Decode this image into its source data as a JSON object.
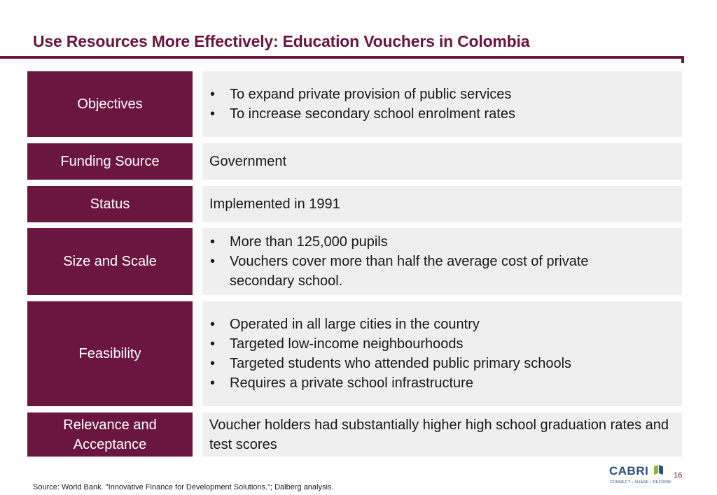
{
  "title": "Use Resources More Effectively: Education Vouchers in Colombia",
  "rows": [
    {
      "label": "Objectives",
      "bullets": [
        "To expand private provision of public services",
        "To increase secondary school enrolment rates"
      ]
    },
    {
      "label": "Funding Source",
      "text": "Government"
    },
    {
      "label": "Status",
      "text": "Implemented in 1991"
    },
    {
      "label": "Size and Scale",
      "bullets": [
        "More than 125,000 pupils",
        "Vouchers cover more than half the average cost of private secondary school."
      ]
    },
    {
      "label": "Feasibility",
      "bullets": [
        "Operated in all large cities in the country",
        "Targeted low-income neighbourhoods",
        "Targeted students who attended public primary schools",
        "Requires a private school infrastructure"
      ]
    },
    {
      "label": "Relevance and Acceptance",
      "text": "Voucher holders had substantially higher high school graduation rates and test scores"
    }
  ],
  "logo": {
    "name": "CABRI",
    "tagline": "CONNECT • SHARE • REFORM"
  },
  "page_number": "16",
  "source": "Source: World Bank. \"Innovative Finance for Development Solutions.\"; Dalberg analysis.",
  "colors": {
    "accent": "#6b1541",
    "panel": "#efefef",
    "logo_blue": "#2c4f86",
    "logo_green": "#8ab43c"
  }
}
